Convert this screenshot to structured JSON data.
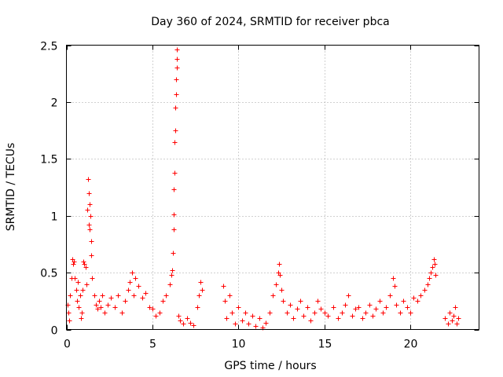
{
  "chart_data": {
    "type": "scatter",
    "title": "Day 360 of 2024, SRMTID for receiver pbca",
    "xlabel": "GPS time / hours",
    "ylabel": "SRMTID / TECUs",
    "xlim": [
      0,
      24
    ],
    "ylim": [
      0,
      2.5
    ],
    "grid": true,
    "marker": "+",
    "marker_color": "#ff0000",
    "x_ticks": [
      0,
      5,
      10,
      15,
      20
    ],
    "x_tick_labels": [
      "0",
      "5",
      "10",
      "15",
      "20"
    ],
    "y_ticks": [
      0,
      0.5,
      1,
      1.5,
      2,
      2.5
    ],
    "y_tick_labels": [
      "0",
      "0.5",
      "1",
      "1.5",
      "2",
      "2.5"
    ],
    "series": [
      {
        "name": "SRMTID",
        "points": [
          [
            0.05,
            0.22
          ],
          [
            0.1,
            0.15
          ],
          [
            0.15,
            0.08
          ],
          [
            0.2,
            0.3
          ],
          [
            0.3,
            0.45
          ],
          [
            0.35,
            0.62
          ],
          [
            0.4,
            0.58
          ],
          [
            0.45,
            0.6
          ],
          [
            0.5,
            0.45
          ],
          [
            0.55,
            0.35
          ],
          [
            0.6,
            0.25
          ],
          [
            0.65,
            0.42
          ],
          [
            0.7,
            0.2
          ],
          [
            0.8,
            0.3
          ],
          [
            0.85,
            0.1
          ],
          [
            0.9,
            0.15
          ],
          [
            0.95,
            0.35
          ],
          [
            1.0,
            0.6
          ],
          [
            1.05,
            0.58
          ],
          [
            1.1,
            0.55
          ],
          [
            1.15,
            0.4
          ],
          [
            1.2,
            1.05
          ],
          [
            1.25,
            1.32
          ],
          [
            1.28,
            1.2
          ],
          [
            1.3,
            0.92
          ],
          [
            1.33,
            1.1
          ],
          [
            1.36,
            0.88
          ],
          [
            1.4,
            1.0
          ],
          [
            1.42,
            0.78
          ],
          [
            1.45,
            0.65
          ],
          [
            1.5,
            0.45
          ],
          [
            1.6,
            0.3
          ],
          [
            1.7,
            0.22
          ],
          [
            1.8,
            0.18
          ],
          [
            1.9,
            0.25
          ],
          [
            2.0,
            0.2
          ],
          [
            2.1,
            0.3
          ],
          [
            2.2,
            0.15
          ],
          [
            2.4,
            0.22
          ],
          [
            2.6,
            0.28
          ],
          [
            2.8,
            0.2
          ],
          [
            3.0,
            0.3
          ],
          [
            3.2,
            0.15
          ],
          [
            3.4,
            0.25
          ],
          [
            3.6,
            0.35
          ],
          [
            3.7,
            0.42
          ],
          [
            3.8,
            0.5
          ],
          [
            3.9,
            0.3
          ],
          [
            4.0,
            0.45
          ],
          [
            4.2,
            0.38
          ],
          [
            4.4,
            0.28
          ],
          [
            4.6,
            0.32
          ],
          [
            4.8,
            0.2
          ],
          [
            5.0,
            0.18
          ],
          [
            5.2,
            0.12
          ],
          [
            5.4,
            0.15
          ],
          [
            5.6,
            0.25
          ],
          [
            5.8,
            0.3
          ],
          [
            6.0,
            0.4
          ],
          [
            6.1,
            0.48
          ],
          [
            6.15,
            0.52
          ],
          [
            6.2,
            0.67
          ],
          [
            6.22,
            0.88
          ],
          [
            6.24,
            1.01
          ],
          [
            6.26,
            1.23
          ],
          [
            6.28,
            1.38
          ],
          [
            6.3,
            1.65
          ],
          [
            6.32,
            1.75
          ],
          [
            6.34,
            1.95
          ],
          [
            6.36,
            2.07
          ],
          [
            6.38,
            2.2
          ],
          [
            6.4,
            2.3
          ],
          [
            6.42,
            2.38
          ],
          [
            6.44,
            2.46
          ],
          [
            6.5,
            0.12
          ],
          [
            6.6,
            0.08
          ],
          [
            6.8,
            0.05
          ],
          [
            7.0,
            0.1
          ],
          [
            7.2,
            0.06
          ],
          [
            7.4,
            0.04
          ],
          [
            7.6,
            0.2
          ],
          [
            7.7,
            0.3
          ],
          [
            7.8,
            0.42
          ],
          [
            7.9,
            0.35
          ],
          [
            9.1,
            0.38
          ],
          [
            9.2,
            0.25
          ],
          [
            9.3,
            0.1
          ],
          [
            9.5,
            0.3
          ],
          [
            9.6,
            0.15
          ],
          [
            9.8,
            0.05
          ],
          [
            10.0,
            0.2
          ],
          [
            10.2,
            0.08
          ],
          [
            10.4,
            0.15
          ],
          [
            10.6,
            0.05
          ],
          [
            10.8,
            0.12
          ],
          [
            11.0,
            0.03
          ],
          [
            11.2,
            0.1
          ],
          [
            11.4,
            0.02
          ],
          [
            11.6,
            0.06
          ],
          [
            11.8,
            0.15
          ],
          [
            12.0,
            0.3
          ],
          [
            12.2,
            0.4
          ],
          [
            12.3,
            0.5
          ],
          [
            12.35,
            0.58
          ],
          [
            12.4,
            0.48
          ],
          [
            12.5,
            0.35
          ],
          [
            12.6,
            0.25
          ],
          [
            12.8,
            0.15
          ],
          [
            13.0,
            0.22
          ],
          [
            13.2,
            0.1
          ],
          [
            13.4,
            0.18
          ],
          [
            13.6,
            0.25
          ],
          [
            13.8,
            0.12
          ],
          [
            14.0,
            0.2
          ],
          [
            14.2,
            0.08
          ],
          [
            14.4,
            0.15
          ],
          [
            14.6,
            0.25
          ],
          [
            14.8,
            0.18
          ],
          [
            15.0,
            0.15
          ],
          [
            15.2,
            0.12
          ],
          [
            15.5,
            0.2
          ],
          [
            15.8,
            0.1
          ],
          [
            16.0,
            0.15
          ],
          [
            16.2,
            0.22
          ],
          [
            16.4,
            0.3
          ],
          [
            16.6,
            0.12
          ],
          [
            16.8,
            0.18
          ],
          [
            17.0,
            0.2
          ],
          [
            17.2,
            0.1
          ],
          [
            17.4,
            0.15
          ],
          [
            17.6,
            0.22
          ],
          [
            17.8,
            0.12
          ],
          [
            18.0,
            0.18
          ],
          [
            18.2,
            0.25
          ],
          [
            18.4,
            0.15
          ],
          [
            18.6,
            0.2
          ],
          [
            18.8,
            0.3
          ],
          [
            19.0,
            0.45
          ],
          [
            19.1,
            0.38
          ],
          [
            19.2,
            0.22
          ],
          [
            19.4,
            0.15
          ],
          [
            19.6,
            0.25
          ],
          [
            19.8,
            0.2
          ],
          [
            20.0,
            0.15
          ],
          [
            20.2,
            0.28
          ],
          [
            20.4,
            0.25
          ],
          [
            20.6,
            0.3
          ],
          [
            20.8,
            0.35
          ],
          [
            21.0,
            0.4
          ],
          [
            21.1,
            0.45
          ],
          [
            21.2,
            0.5
          ],
          [
            21.3,
            0.55
          ],
          [
            21.35,
            0.62
          ],
          [
            21.4,
            0.58
          ],
          [
            21.45,
            0.48
          ],
          [
            22.0,
            0.1
          ],
          [
            22.2,
            0.05
          ],
          [
            22.3,
            0.15
          ],
          [
            22.4,
            0.08
          ],
          [
            22.5,
            0.12
          ],
          [
            22.6,
            0.2
          ],
          [
            22.7,
            0.05
          ],
          [
            22.8,
            0.1
          ]
        ]
      }
    ]
  }
}
